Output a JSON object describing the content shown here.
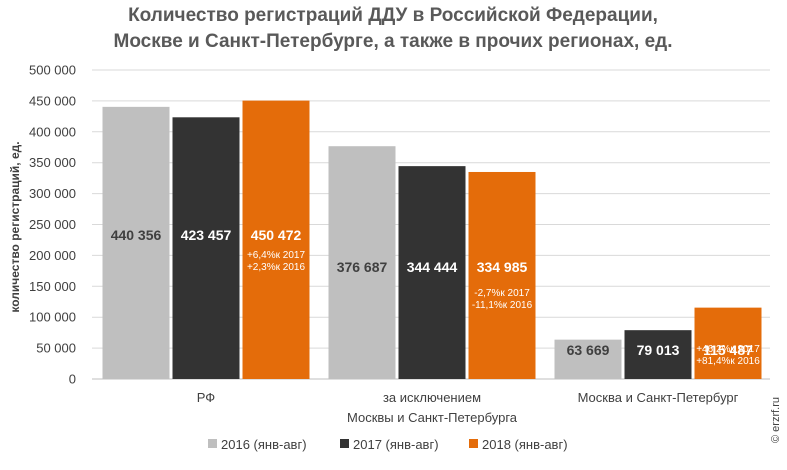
{
  "chart_data": {
    "type": "bar",
    "title": [
      "Количество регистраций ДДУ в Российской Федерации,",
      "Москве и Санкт-Петербурге, а также в прочих регионах, ед."
    ],
    "ylabel": "количество регистраций, ед.",
    "xlabel": "",
    "ylim": [
      0,
      500000
    ],
    "yticks": [
      0,
      50000,
      100000,
      150000,
      200000,
      250000,
      300000,
      350000,
      400000,
      450000,
      500000
    ],
    "ytick_labels": [
      "0",
      "50 000",
      "100 000",
      "150 000",
      "200 000",
      "250 000",
      "300 000",
      "350 000",
      "400 000",
      "450 000",
      "500 000"
    ],
    "grid": true,
    "legend_position": "bottom",
    "categories": [
      [
        "РФ"
      ],
      [
        "за исключением",
        "Москвы и Санкт-Петербурга"
      ],
      [
        "Москва и Санкт-Петербург"
      ]
    ],
    "series": [
      {
        "name": "2016 (янв-авг)",
        "color": "#bfbfbf",
        "value_color": "#404040",
        "values": [
          440356,
          376687,
          63669
        ],
        "labels": [
          "440 356",
          "376 687",
          "63 669"
        ],
        "annotations": [
          [],
          [],
          []
        ]
      },
      {
        "name": "2017 (янв-авг)",
        "color": "#333333",
        "value_color": "#ffffff",
        "values": [
          423457,
          344444,
          79013
        ],
        "labels": [
          "423 457",
          "344 444",
          "79 013"
        ],
        "annotations": [
          [],
          [],
          []
        ]
      },
      {
        "name": "2018 (янв-авг)",
        "color": "#e46c0a",
        "value_color": "#ffffff",
        "values": [
          450472,
          334985,
          115487
        ],
        "labels": [
          "450 472",
          "334 985",
          "115 487"
        ],
        "annotations": [
          [
            "+6,4%к 2017",
            "+2,3%к 2016"
          ],
          [
            "-2,7%к 2017",
            "-11,1%к 2016"
          ],
          [
            "+46,2%к 2017",
            "+81,4%к 2016"
          ]
        ]
      }
    ]
  },
  "watermark": "© erzrf.ru"
}
